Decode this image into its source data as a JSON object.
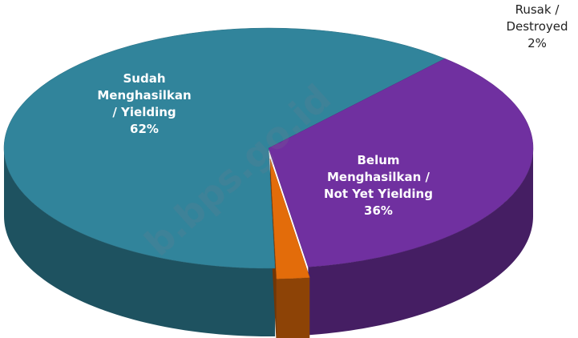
{
  "chart_data": {
    "type": "pie",
    "categories": [
      "Sudah Menghasilkan / Yielding",
      "Belum Menghasilkan / Not Yet Yielding",
      "Rusak / Destroyed"
    ],
    "values": [
      62,
      36,
      2
    ],
    "value_labels": [
      "62%",
      "36%",
      "2%"
    ],
    "colors": [
      "#31849b",
      "#7030a0",
      "#e36c0a"
    ],
    "watermark": "b.bps.go.id"
  }
}
